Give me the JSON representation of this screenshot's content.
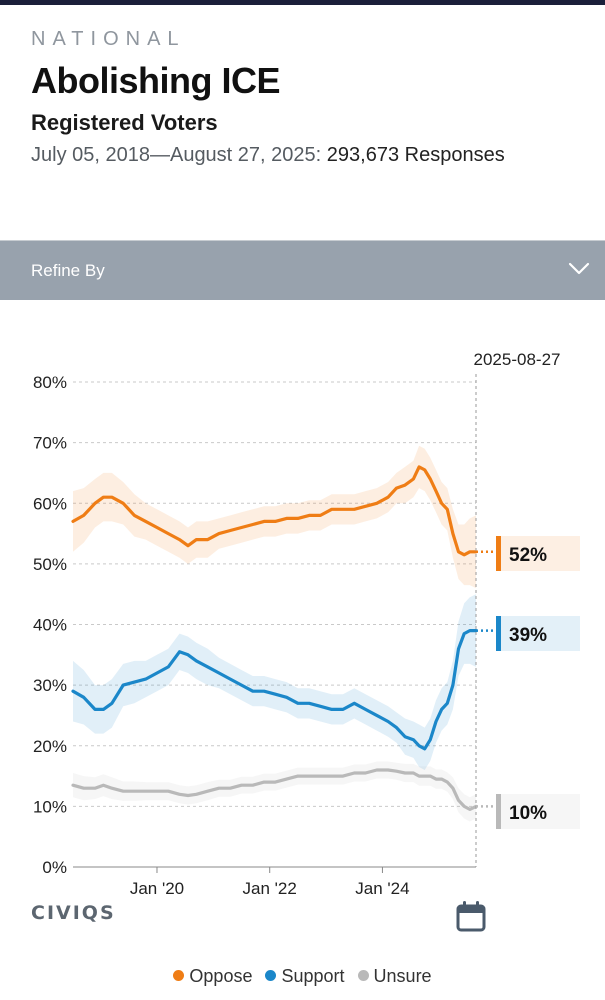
{
  "header": {
    "kicker": "NATIONAL",
    "title": "Abolishing ICE",
    "subtitle": "Registered Voters",
    "date_range": "July 05, 2018—August 27, 2025:",
    "responses": "293,673 Responses"
  },
  "refine": {
    "label": "Refine By"
  },
  "brand": {
    "logo_text": "CIVIQS"
  },
  "colors": {
    "oppose": "#ef7d15",
    "support": "#1b87c9",
    "unsure": "#b9b9b9"
  },
  "chart_data": {
    "type": "line",
    "title": "Abolishing ICE",
    "x_range": [
      2018.51,
      2025.66
    ],
    "ylim": [
      0,
      80
    ],
    "y_ticks": [
      0,
      10,
      20,
      30,
      40,
      50,
      60,
      70,
      80
    ],
    "y_tick_labels": [
      "0%",
      "10%",
      "20%",
      "30%",
      "40%",
      "50%",
      "60%",
      "70%",
      "80%"
    ],
    "x_ticks": [
      2020.0,
      2022.0,
      2024.0
    ],
    "x_tick_labels": [
      "Jan '20",
      "Jan '22",
      "Jan '24"
    ],
    "grid": true,
    "current_date": "2025-08-27",
    "current_x": 2025.66,
    "series": [
      {
        "name": "Oppose",
        "final_label": "52%",
        "x": [
          2018.51,
          2018.7,
          2018.9,
          2019.05,
          2019.2,
          2019.4,
          2019.6,
          2019.8,
          2020.0,
          2020.2,
          2020.4,
          2020.55,
          2020.7,
          2020.9,
          2021.1,
          2021.3,
          2021.5,
          2021.7,
          2021.9,
          2022.1,
          2022.3,
          2022.5,
          2022.7,
          2022.9,
          2023.1,
          2023.3,
          2023.5,
          2023.7,
          2023.9,
          2024.1,
          2024.25,
          2024.4,
          2024.55,
          2024.65,
          2024.75,
          2024.85,
          2024.95,
          2025.05,
          2025.15,
          2025.25,
          2025.35,
          2025.45,
          2025.55,
          2025.66
        ],
        "values": [
          57,
          58,
          60,
          61,
          61,
          60,
          58,
          57,
          56,
          55,
          54,
          53,
          54,
          54,
          55,
          55.5,
          56,
          56.5,
          57,
          57,
          57.5,
          57.5,
          58,
          58,
          59,
          59,
          59,
          59.5,
          60,
          61,
          62.5,
          63,
          64,
          66,
          65.5,
          64,
          62,
          60,
          59,
          55,
          52,
          51.5,
          52,
          52
        ],
        "band": [
          5,
          4.5,
          4,
          4,
          4,
          3.5,
          3.5,
          3,
          3,
          3,
          3,
          3,
          3,
          3,
          2.5,
          2.5,
          2.5,
          2.5,
          2.5,
          2.5,
          2.5,
          2.5,
          2.5,
          2.5,
          2.5,
          2.5,
          2.5,
          2.5,
          2.5,
          2.5,
          2.5,
          3,
          3,
          3.5,
          3.5,
          3.5,
          3.5,
          3.5,
          3.5,
          4,
          4.5,
          5,
          5.5,
          6
        ]
      },
      {
        "name": "Support",
        "final_label": "39%",
        "x": [
          2018.51,
          2018.7,
          2018.9,
          2019.05,
          2019.2,
          2019.4,
          2019.6,
          2019.8,
          2020.0,
          2020.2,
          2020.4,
          2020.55,
          2020.7,
          2020.9,
          2021.1,
          2021.3,
          2021.5,
          2021.7,
          2021.9,
          2022.1,
          2022.3,
          2022.5,
          2022.7,
          2022.9,
          2023.1,
          2023.3,
          2023.5,
          2023.7,
          2023.9,
          2024.1,
          2024.25,
          2024.4,
          2024.55,
          2024.65,
          2024.75,
          2024.85,
          2024.95,
          2025.05,
          2025.15,
          2025.25,
          2025.35,
          2025.45,
          2025.55,
          2025.66
        ],
        "values": [
          29,
          28,
          26,
          26,
          27,
          30,
          30.5,
          31,
          32,
          33,
          35.5,
          35,
          34,
          33,
          32,
          31,
          30,
          29,
          29,
          28.5,
          28,
          27,
          27,
          26.5,
          26,
          26,
          27,
          26,
          25,
          24,
          23,
          21.5,
          21,
          20,
          19.5,
          21,
          24,
          26,
          27,
          30,
          36,
          38.5,
          39,
          39
        ],
        "band": [
          5,
          4.5,
          4,
          4,
          4,
          3.5,
          3.5,
          3,
          3,
          3,
          3,
          3,
          3,
          3,
          2.5,
          2.5,
          2.5,
          2.5,
          2.5,
          2.5,
          2.5,
          2.5,
          2.5,
          2.5,
          2.5,
          2.5,
          2.5,
          2.5,
          2.5,
          2.5,
          2.5,
          3,
          3,
          3.5,
          3.5,
          3.5,
          3.5,
          3.5,
          3.5,
          4,
          4.5,
          5,
          5.5,
          6
        ]
      },
      {
        "name": "Unsure",
        "final_label": "10%",
        "x": [
          2018.51,
          2018.7,
          2018.9,
          2019.05,
          2019.2,
          2019.4,
          2019.6,
          2019.8,
          2020.0,
          2020.2,
          2020.4,
          2020.55,
          2020.7,
          2020.9,
          2021.1,
          2021.3,
          2021.5,
          2021.7,
          2021.9,
          2022.1,
          2022.3,
          2022.5,
          2022.7,
          2022.9,
          2023.1,
          2023.3,
          2023.5,
          2023.7,
          2023.9,
          2024.1,
          2024.25,
          2024.4,
          2024.55,
          2024.65,
          2024.75,
          2024.85,
          2024.95,
          2025.05,
          2025.15,
          2025.25,
          2025.35,
          2025.45,
          2025.55,
          2025.66
        ],
        "values": [
          13.5,
          13,
          13,
          13.5,
          13,
          12.5,
          12.5,
          12.5,
          12.5,
          12.5,
          12,
          11.8,
          12,
          12.5,
          13,
          13,
          13.5,
          13.5,
          14,
          14,
          14.5,
          15,
          15,
          15,
          15,
          15,
          15.5,
          15.5,
          16,
          16,
          15.8,
          15.5,
          15.5,
          15,
          15,
          15,
          14.5,
          14.5,
          14,
          13,
          11,
          10,
          9.5,
          10
        ],
        "band": [
          2,
          2,
          1.8,
          1.8,
          1.8,
          1.6,
          1.6,
          1.5,
          1.5,
          1.5,
          1.5,
          1.5,
          1.5,
          1.5,
          1.4,
          1.4,
          1.4,
          1.4,
          1.4,
          1.4,
          1.4,
          1.4,
          1.4,
          1.4,
          1.4,
          1.4,
          1.4,
          1.4,
          1.4,
          1.4,
          1.4,
          1.5,
          1.5,
          1.6,
          1.6,
          1.6,
          1.6,
          1.6,
          1.6,
          1.8,
          2,
          2,
          2,
          2
        ]
      }
    ],
    "legend": [
      "Oppose",
      "Support",
      "Unsure"
    ],
    "legend_position": "bottom-center"
  }
}
